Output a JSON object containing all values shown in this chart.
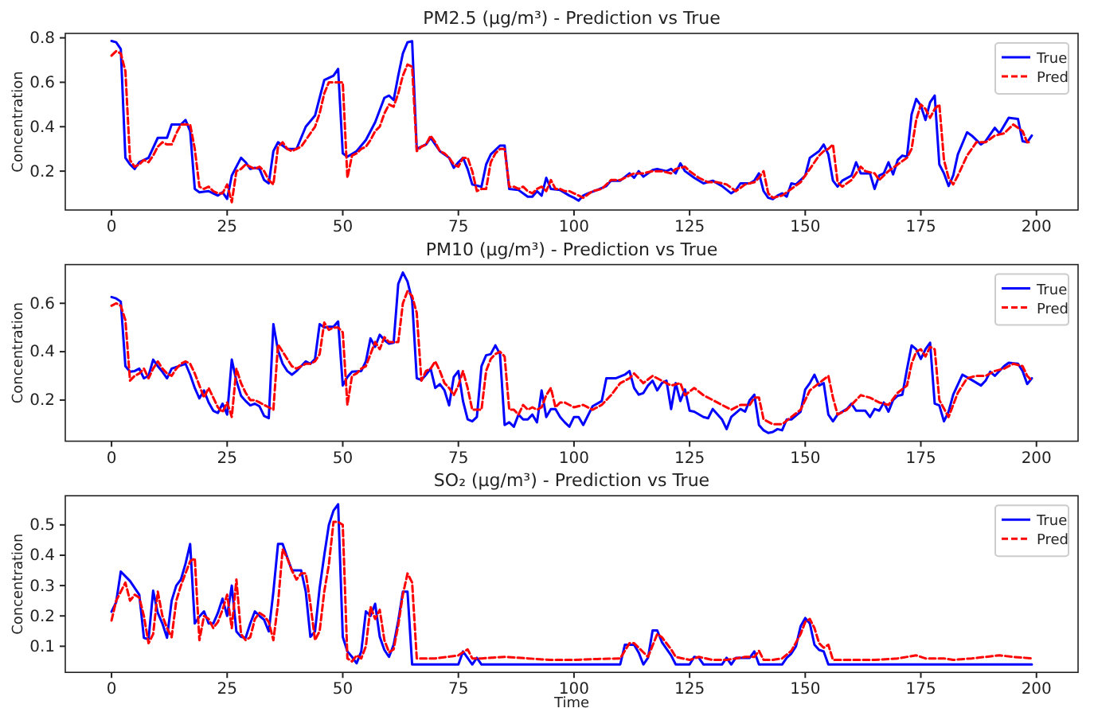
{
  "chart_data": [
    {
      "type": "line",
      "title": "PM2.5 (μg/m³) - Prediction vs True",
      "ylabel": "Concentration",
      "xlim": [
        -10,
        209
      ],
      "xticks": [
        0,
        25,
        50,
        75,
        100,
        125,
        150,
        175,
        200
      ],
      "ylim": [
        0.025,
        0.82
      ],
      "yticks": [
        0.2,
        0.4,
        0.6,
        0.8
      ],
      "legend": "top right",
      "series": [
        {
          "name": "True",
          "color": "#0000ff",
          "line_style": "solid",
          "x": [
            0,
            1,
            2,
            3,
            4,
            5,
            6,
            8,
            10,
            11,
            12,
            13,
            15,
            16,
            17,
            18,
            19,
            21,
            22,
            23,
            24,
            25,
            26,
            28,
            29,
            30,
            31,
            32,
            33,
            34,
            35,
            36,
            38,
            40,
            42,
            44,
            45,
            46,
            47,
            48,
            49,
            50,
            51,
            53,
            55,
            57,
            59,
            60,
            61,
            62,
            63,
            64,
            65,
            66,
            67,
            68,
            69,
            70,
            71,
            73,
            74,
            75,
            76,
            77,
            78,
            80,
            81,
            82,
            84,
            85,
            86,
            88,
            90,
            91,
            92,
            93,
            94,
            95,
            97,
            99,
            100,
            101,
            102,
            103,
            105,
            107,
            108,
            110,
            112,
            113,
            114,
            115,
            117,
            118,
            120,
            121,
            122,
            123,
            124,
            126,
            128,
            130,
            132,
            134,
            135,
            136,
            138,
            139,
            140,
            141,
            142,
            143,
            144,
            145,
            146,
            147,
            148,
            150,
            151,
            153,
            154,
            155,
            156,
            157,
            158,
            160,
            161,
            162,
            164,
            165,
            166,
            167,
            168,
            169,
            170,
            171,
            172,
            173,
            174,
            175,
            176,
            177,
            178,
            179,
            180,
            181,
            182,
            183,
            185,
            186,
            188,
            189,
            191,
            192,
            194,
            196,
            197,
            198,
            199
          ],
          "values": [
            0.786,
            0.78,
            0.75,
            0.26,
            0.23,
            0.21,
            0.24,
            0.26,
            0.35,
            0.35,
            0.35,
            0.41,
            0.41,
            0.43,
            0.38,
            0.12,
            0.105,
            0.11,
            0.1,
            0.09,
            0.105,
            0.075,
            0.18,
            0.26,
            0.24,
            0.21,
            0.215,
            0.21,
            0.16,
            0.145,
            0.29,
            0.33,
            0.3,
            0.3,
            0.4,
            0.45,
            0.53,
            0.61,
            0.62,
            0.63,
            0.66,
            0.28,
            0.265,
            0.29,
            0.34,
            0.42,
            0.53,
            0.54,
            0.52,
            0.63,
            0.73,
            0.78,
            0.785,
            0.3,
            0.31,
            0.32,
            0.35,
            0.32,
            0.29,
            0.26,
            0.215,
            0.24,
            0.26,
            0.21,
            0.14,
            0.13,
            0.23,
            0.275,
            0.315,
            0.315,
            0.12,
            0.115,
            0.085,
            0.085,
            0.11,
            0.09,
            0.17,
            0.12,
            0.115,
            0.09,
            0.08,
            0.067,
            0.09,
            0.1,
            0.115,
            0.133,
            0.157,
            0.157,
            0.19,
            0.17,
            0.2,
            0.175,
            0.205,
            0.21,
            0.2,
            0.21,
            0.19,
            0.235,
            0.2,
            0.17,
            0.145,
            0.157,
            0.133,
            0.1,
            0.115,
            0.145,
            0.145,
            0.157,
            0.19,
            0.11,
            0.08,
            0.074,
            0.09,
            0.1,
            0.085,
            0.145,
            0.14,
            0.18,
            0.26,
            0.29,
            0.32,
            0.275,
            0.157,
            0.13,
            0.157,
            0.18,
            0.24,
            0.19,
            0.19,
            0.12,
            0.18,
            0.19,
            0.24,
            0.185,
            0.25,
            0.27,
            0.265,
            0.455,
            0.525,
            0.495,
            0.43,
            0.51,
            0.54,
            0.23,
            0.19,
            0.133,
            0.18,
            0.275,
            0.375,
            0.36,
            0.32,
            0.335,
            0.395,
            0.37,
            0.44,
            0.435,
            0.335,
            0.33,
            0.36
          ]
        },
        {
          "name": "Pred",
          "color": "#ff0000",
          "line_style": "dashed",
          "x": [
            0,
            1,
            2,
            3,
            4,
            5,
            6,
            7,
            8,
            9,
            10,
            11,
            12,
            13,
            14,
            15,
            16,
            17,
            18,
            19,
            20,
            21,
            22,
            23,
            24,
            25,
            26,
            27,
            28,
            29,
            30,
            31,
            32,
            33,
            34,
            35,
            36,
            37,
            38,
            39,
            40,
            41,
            42,
            43,
            44,
            45,
            46,
            47,
            48,
            49,
            50,
            51,
            52,
            53,
            54,
            55,
            56,
            57,
            58,
            59,
            60,
            61,
            62,
            63,
            64,
            65,
            66,
            67,
            68,
            69,
            70,
            71,
            72,
            73,
            74,
            75,
            76,
            77,
            78,
            79,
            80,
            81,
            82,
            83,
            84,
            85,
            86,
            87,
            88,
            89,
            90,
            91,
            92,
            93,
            94,
            95,
            96,
            97,
            98,
            99,
            100,
            102,
            104,
            106,
            108,
            110,
            112,
            113,
            115,
            117,
            119,
            121,
            122,
            124,
            125,
            127,
            129,
            131,
            133,
            135,
            137,
            139,
            140,
            141,
            142,
            143,
            145,
            147,
            149,
            151,
            153,
            154,
            155,
            156,
            157,
            158,
            160,
            162,
            163,
            165,
            166,
            168,
            170,
            172,
            173,
            174,
            175,
            176,
            177,
            178,
            179,
            180,
            181,
            182,
            183,
            185,
            187,
            189,
            191,
            193,
            195,
            197,
            198,
            199
          ],
          "values": [
            0.72,
            0.74,
            0.73,
            0.65,
            0.25,
            0.22,
            0.23,
            0.25,
            0.24,
            0.27,
            0.31,
            0.33,
            0.32,
            0.32,
            0.37,
            0.41,
            0.41,
            0.41,
            0.3,
            0.13,
            0.12,
            0.13,
            0.11,
            0.1,
            0.1,
            0.14,
            0.06,
            0.2,
            0.21,
            0.23,
            0.22,
            0.21,
            0.22,
            0.2,
            0.16,
            0.14,
            0.31,
            0.33,
            0.3,
            0.29,
            0.3,
            0.31,
            0.34,
            0.37,
            0.4,
            0.46,
            0.55,
            0.6,
            0.6,
            0.6,
            0.6,
            0.17,
            0.27,
            0.28,
            0.3,
            0.31,
            0.34,
            0.38,
            0.4,
            0.46,
            0.5,
            0.49,
            0.55,
            0.63,
            0.68,
            0.67,
            0.29,
            0.31,
            0.32,
            0.36,
            0.33,
            0.29,
            0.28,
            0.26,
            0.23,
            0.22,
            0.26,
            0.26,
            0.2,
            0.11,
            0.12,
            0.12,
            0.24,
            0.28,
            0.3,
            0.3,
            0.13,
            0.13,
            0.12,
            0.13,
            0.11,
            0.1,
            0.12,
            0.13,
            0.11,
            0.16,
            0.12,
            0.12,
            0.11,
            0.11,
            0.1,
            0.08,
            0.11,
            0.12,
            0.16,
            0.16,
            0.18,
            0.19,
            0.19,
            0.2,
            0.2,
            0.19,
            0.21,
            0.22,
            0.2,
            0.17,
            0.15,
            0.15,
            0.14,
            0.11,
            0.14,
            0.15,
            0.17,
            0.2,
            0.1,
            0.08,
            0.09,
            0.12,
            0.15,
            0.21,
            0.27,
            0.29,
            0.3,
            0.32,
            0.15,
            0.13,
            0.16,
            0.22,
            0.2,
            0.19,
            0.16,
            0.2,
            0.23,
            0.26,
            0.3,
            0.43,
            0.5,
            0.48,
            0.44,
            0.48,
            0.5,
            0.25,
            0.17,
            0.14,
            0.18,
            0.27,
            0.33,
            0.33,
            0.36,
            0.37,
            0.41,
            0.38,
            0.33,
            0.33
          ]
        }
      ]
    },
    {
      "type": "line",
      "title": "PM10 (μg/m³) - Prediction vs True",
      "ylabel": "Concentration",
      "xlim": [
        -10,
        209
      ],
      "xticks": [
        0,
        25,
        50,
        75,
        100,
        125,
        150,
        175,
        200
      ],
      "ylim": [
        0.03,
        0.76
      ],
      "yticks": [
        0.2,
        0.4,
        0.6
      ],
      "legend": "top right",
      "series": [
        {
          "name": "True",
          "color": "#0000ff",
          "line_style": "solid",
          "x": [
            0,
            1,
            2,
            3,
            4,
            5,
            6,
            7,
            8,
            9,
            10,
            11,
            12,
            13,
            15,
            16,
            17,
            18,
            19,
            20,
            21,
            22,
            23,
            24,
            25,
            26,
            27,
            28,
            29,
            30,
            31,
            32,
            33,
            34,
            35,
            36,
            37,
            38,
            39,
            40,
            41,
            42,
            43,
            44,
            45,
            46,
            47,
            48,
            49,
            50,
            51,
            52,
            54,
            55,
            56,
            57,
            58,
            59,
            60,
            61,
            62,
            63,
            64,
            65,
            66,
            67,
            68,
            69,
            70,
            71,
            72,
            73,
            74,
            75,
            76,
            77,
            78,
            79,
            80,
            81,
            82,
            83,
            84,
            85,
            86,
            87,
            88,
            89,
            90,
            91,
            92,
            93,
            94,
            95,
            96,
            97,
            98,
            99,
            100,
            101,
            102,
            104,
            106,
            107,
            109,
            111,
            112,
            113,
            114,
            115,
            116,
            117,
            118,
            119,
            120,
            121,
            122,
            123,
            124,
            125,
            126,
            128,
            129,
            130,
            132,
            133,
            134,
            136,
            137,
            138,
            139,
            140,
            141,
            142,
            143,
            144,
            145,
            146,
            147,
            149,
            150,
            151,
            152,
            153,
            154,
            155,
            156,
            157,
            159,
            160,
            161,
            163,
            164,
            165,
            166,
            167,
            168,
            169,
            170,
            171,
            172,
            173,
            174,
            175,
            176,
            177,
            178,
            179,
            180,
            181,
            182,
            184,
            186,
            188,
            189,
            190,
            191,
            193,
            194,
            196,
            197,
            198,
            199
          ],
          "values": [
            0.626,
            0.62,
            0.607,
            0.34,
            0.317,
            0.32,
            0.33,
            0.29,
            0.3,
            0.367,
            0.34,
            0.317,
            0.29,
            0.33,
            0.343,
            0.35,
            0.305,
            0.25,
            0.207,
            0.24,
            0.19,
            0.156,
            0.147,
            0.185,
            0.14,
            0.367,
            0.28,
            0.218,
            0.196,
            0.178,
            0.185,
            0.174,
            0.134,
            0.125,
            0.514,
            0.405,
            0.35,
            0.32,
            0.305,
            0.32,
            0.34,
            0.36,
            0.35,
            0.37,
            0.514,
            0.5,
            0.503,
            0.503,
            0.525,
            0.26,
            0.295,
            0.317,
            0.32,
            0.36,
            0.455,
            0.42,
            0.47,
            0.448,
            0.433,
            0.437,
            0.68,
            0.727,
            0.69,
            0.613,
            0.29,
            0.283,
            0.305,
            0.33,
            0.25,
            0.266,
            0.24,
            0.178,
            0.295,
            0.32,
            0.196,
            0.12,
            0.112,
            0.13,
            0.34,
            0.385,
            0.39,
            0.426,
            0.39,
            0.097,
            0.108,
            0.09,
            0.14,
            0.12,
            0.12,
            0.14,
            0.108,
            0.24,
            0.13,
            0.163,
            0.163,
            0.13,
            0.108,
            0.09,
            0.13,
            0.13,
            0.097,
            0.174,
            0.196,
            0.29,
            0.29,
            0.305,
            0.32,
            0.25,
            0.222,
            0.229,
            0.26,
            0.28,
            0.24,
            0.27,
            0.28,
            0.163,
            0.27,
            0.196,
            0.244,
            0.156,
            0.152,
            0.13,
            0.125,
            0.163,
            0.12,
            0.08,
            0.13,
            0.163,
            0.152,
            0.2,
            0.222,
            0.097,
            0.075,
            0.064,
            0.068,
            0.08,
            0.075,
            0.12,
            0.12,
            0.152,
            0.244,
            0.27,
            0.305,
            0.26,
            0.27,
            0.14,
            0.112,
            0.14,
            0.163,
            0.185,
            0.156,
            0.156,
            0.13,
            0.163,
            0.156,
            0.19,
            0.152,
            0.2,
            0.218,
            0.222,
            0.327,
            0.426,
            0.41,
            0.37,
            0.41,
            0.437,
            0.185,
            0.178,
            0.112,
            0.152,
            0.222,
            0.305,
            0.283,
            0.26,
            0.28,
            0.317,
            0.3,
            0.34,
            0.354,
            0.35,
            0.32,
            0.266,
            0.29
          ]
        },
        {
          "name": "Pred",
          "color": "#ff0000",
          "line_style": "dashed",
          "x": [
            0,
            1,
            2,
            3,
            4,
            5,
            6,
            7,
            8,
            9,
            10,
            11,
            12,
            13,
            14,
            15,
            16,
            17,
            18,
            19,
            20,
            21,
            22,
            23,
            24,
            25,
            26,
            27,
            28,
            29,
            30,
            31,
            32,
            33,
            34,
            35,
            36,
            37,
            38,
            39,
            40,
            41,
            42,
            43,
            44,
            45,
            46,
            47,
            48,
            49,
            50,
            51,
            52,
            53,
            54,
            55,
            56,
            57,
            58,
            59,
            60,
            61,
            62,
            63,
            64,
            65,
            66,
            67,
            68,
            69,
            70,
            71,
            72,
            73,
            74,
            75,
            76,
            77,
            78,
            79,
            80,
            81,
            82,
            83,
            84,
            85,
            86,
            87,
            88,
            89,
            90,
            91,
            92,
            93,
            94,
            95,
            96,
            97,
            98,
            99,
            100,
            102,
            104,
            106,
            108,
            110,
            112,
            113,
            115,
            117,
            119,
            121,
            123,
            124,
            126,
            128,
            130,
            132,
            134,
            136,
            138,
            139,
            140,
            141,
            143,
            145,
            147,
            149,
            151,
            153,
            155,
            156,
            157,
            159,
            161,
            162,
            164,
            166,
            168,
            170,
            172,
            173,
            174,
            175,
            176,
            177,
            178,
            179,
            181,
            183,
            185,
            187,
            189,
            191,
            193,
            195,
            197,
            198,
            199
          ],
          "values": [
            0.59,
            0.6,
            0.59,
            0.53,
            0.28,
            0.3,
            0.31,
            0.33,
            0.29,
            0.33,
            0.36,
            0.33,
            0.31,
            0.3,
            0.33,
            0.35,
            0.36,
            0.35,
            0.31,
            0.26,
            0.21,
            0.25,
            0.21,
            0.17,
            0.15,
            0.19,
            0.13,
            0.33,
            0.27,
            0.23,
            0.2,
            0.2,
            0.19,
            0.18,
            0.17,
            0.16,
            0.43,
            0.4,
            0.37,
            0.34,
            0.33,
            0.34,
            0.35,
            0.35,
            0.36,
            0.39,
            0.52,
            0.49,
            0.5,
            0.5,
            0.48,
            0.18,
            0.3,
            0.31,
            0.33,
            0.34,
            0.39,
            0.44,
            0.41,
            0.46,
            0.44,
            0.44,
            0.44,
            0.6,
            0.65,
            0.63,
            0.56,
            0.28,
            0.32,
            0.33,
            0.36,
            0.32,
            0.27,
            0.25,
            0.22,
            0.26,
            0.32,
            0.25,
            0.16,
            0.16,
            0.16,
            0.32,
            0.37,
            0.39,
            0.4,
            0.38,
            0.16,
            0.16,
            0.14,
            0.18,
            0.16,
            0.17,
            0.16,
            0.17,
            0.22,
            0.25,
            0.17,
            0.19,
            0.19,
            0.18,
            0.17,
            0.18,
            0.16,
            0.18,
            0.22,
            0.27,
            0.29,
            0.31,
            0.27,
            0.3,
            0.28,
            0.26,
            0.27,
            0.22,
            0.25,
            0.22,
            0.2,
            0.18,
            0.16,
            0.18,
            0.18,
            0.21,
            0.21,
            0.12,
            0.1,
            0.1,
            0.13,
            0.16,
            0.24,
            0.27,
            0.3,
            0.21,
            0.14,
            0.16,
            0.2,
            0.22,
            0.21,
            0.19,
            0.18,
            0.23,
            0.26,
            0.35,
            0.4,
            0.41,
            0.38,
            0.42,
            0.41,
            0.2,
            0.13,
            0.23,
            0.29,
            0.3,
            0.3,
            0.32,
            0.33,
            0.35,
            0.34,
            0.3,
            0.28
          ]
        }
      ]
    },
    {
      "type": "line",
      "title": "SO₂ (μg/m³) - Prediction vs True",
      "xlabel": "Time",
      "ylabel": "Concentration",
      "xlim": [
        -10,
        209
      ],
      "xticks": [
        0,
        25,
        50,
        75,
        100,
        125,
        150,
        175,
        200
      ],
      "ylim": [
        0.014,
        0.596
      ],
      "yticks": [
        0.1,
        0.2,
        0.3,
        0.4,
        0.5
      ],
      "legend": "top right",
      "series": [
        {
          "name": "True",
          "color": "#0000ff",
          "line_style": "solid",
          "x": [
            0,
            1,
            2,
            4,
            6,
            7,
            8,
            9,
            10,
            11,
            12,
            13,
            14,
            15,
            16,
            17,
            18,
            19,
            20,
            21,
            22,
            23,
            24,
            25,
            26,
            27,
            28,
            29,
            30,
            31,
            32,
            33,
            34,
            35,
            36,
            37,
            38,
            39,
            41,
            42,
            43,
            44,
            45,
            46,
            47,
            48,
            49,
            50,
            51,
            52,
            53,
            54,
            55,
            56,
            57,
            58,
            59,
            60,
            61,
            62,
            63,
            64,
            65,
            75,
            76,
            78,
            79,
            80,
            110,
            111,
            113,
            114,
            115,
            116,
            117,
            118,
            119,
            121,
            122,
            125,
            126,
            127,
            128,
            132,
            133,
            134,
            135,
            138,
            139,
            140,
            145,
            146,
            147,
            148,
            149,
            150,
            151,
            152,
            153,
            154,
            155,
            199
          ],
          "values": [
            0.214,
            0.245,
            0.346,
            0.315,
            0.27,
            0.128,
            0.123,
            0.283,
            0.21,
            0.175,
            0.128,
            0.25,
            0.3,
            0.32,
            0.372,
            0.437,
            0.175,
            0.198,
            0.215,
            0.175,
            0.175,
            0.21,
            0.257,
            0.2,
            0.3,
            0.149,
            0.131,
            0.128,
            0.175,
            0.215,
            0.2,
            0.187,
            0.149,
            0.28,
            0.437,
            0.437,
            0.393,
            0.35,
            0.35,
            0.28,
            0.131,
            0.149,
            0.292,
            0.4,
            0.5,
            0.547,
            0.568,
            0.131,
            0.083,
            0.065,
            0.044,
            0.083,
            0.215,
            0.2,
            0.24,
            0.131,
            0.088,
            0.065,
            0.105,
            0.184,
            0.28,
            0.28,
            0.04,
            0.04,
            0.083,
            0.04,
            0.062,
            0.04,
            0.04,
            0.105,
            0.105,
            0.079,
            0.04,
            0.062,
            0.152,
            0.152,
            0.114,
            0.07,
            0.04,
            0.04,
            0.065,
            0.062,
            0.04,
            0.04,
            0.062,
            0.04,
            0.062,
            0.062,
            0.083,
            0.04,
            0.04,
            0.062,
            0.076,
            0.1,
            0.166,
            0.193,
            0.175,
            0.105,
            0.088,
            0.083,
            0.04,
            0.04
          ]
        },
        {
          "name": "Pred",
          "color": "#ff0000",
          "line_style": "dashed",
          "x": [
            0,
            1,
            2,
            3,
            4,
            5,
            6,
            7,
            8,
            9,
            10,
            11,
            12,
            13,
            14,
            15,
            16,
            17,
            18,
            19,
            20,
            21,
            22,
            23,
            24,
            25,
            26,
            27,
            28,
            29,
            30,
            31,
            32,
            33,
            34,
            35,
            36,
            37,
            38,
            39,
            40,
            41,
            42,
            43,
            44,
            45,
            46,
            47,
            48,
            49,
            50,
            51,
            52,
            53,
            54,
            55,
            56,
            57,
            58,
            59,
            60,
            61,
            62,
            63,
            64,
            65,
            66,
            70,
            75,
            77,
            78,
            80,
            85,
            90,
            95,
            100,
            105,
            110,
            112,
            113,
            115,
            116,
            118,
            119,
            121,
            122,
            125,
            127,
            130,
            133,
            135,
            137,
            139,
            140,
            141,
            143,
            145,
            147,
            149,
            150,
            151,
            152,
            153,
            154,
            155,
            156,
            160,
            165,
            170,
            174,
            176,
            180,
            182,
            186,
            192,
            195,
            199
          ],
          "values": [
            0.185,
            0.25,
            0.28,
            0.31,
            0.25,
            0.27,
            0.26,
            0.2,
            0.11,
            0.14,
            0.28,
            0.2,
            0.16,
            0.13,
            0.25,
            0.3,
            0.34,
            0.38,
            0.39,
            0.12,
            0.2,
            0.19,
            0.16,
            0.18,
            0.22,
            0.27,
            0.16,
            0.32,
            0.14,
            0.12,
            0.13,
            0.19,
            0.21,
            0.2,
            0.18,
            0.12,
            0.24,
            0.42,
            0.39,
            0.35,
            0.32,
            0.34,
            0.34,
            0.24,
            0.12,
            0.15,
            0.28,
            0.37,
            0.51,
            0.51,
            0.5,
            0.06,
            0.05,
            0.07,
            0.06,
            0.1,
            0.23,
            0.19,
            0.22,
            0.12,
            0.08,
            0.09,
            0.17,
            0.27,
            0.34,
            0.31,
            0.06,
            0.06,
            0.07,
            0.09,
            0.06,
            0.06,
            0.065,
            0.06,
            0.055,
            0.055,
            0.058,
            0.06,
            0.11,
            0.11,
            0.08,
            0.065,
            0.14,
            0.13,
            0.09,
            0.065,
            0.055,
            0.065,
            0.055,
            0.055,
            0.06,
            0.065,
            0.065,
            0.085,
            0.055,
            0.055,
            0.06,
            0.085,
            0.14,
            0.18,
            0.19,
            0.16,
            0.11,
            0.095,
            0.105,
            0.055,
            0.055,
            0.055,
            0.06,
            0.07,
            0.06,
            0.06,
            0.055,
            0.06,
            0.07,
            0.065,
            0.06
          ]
        }
      ]
    }
  ]
}
